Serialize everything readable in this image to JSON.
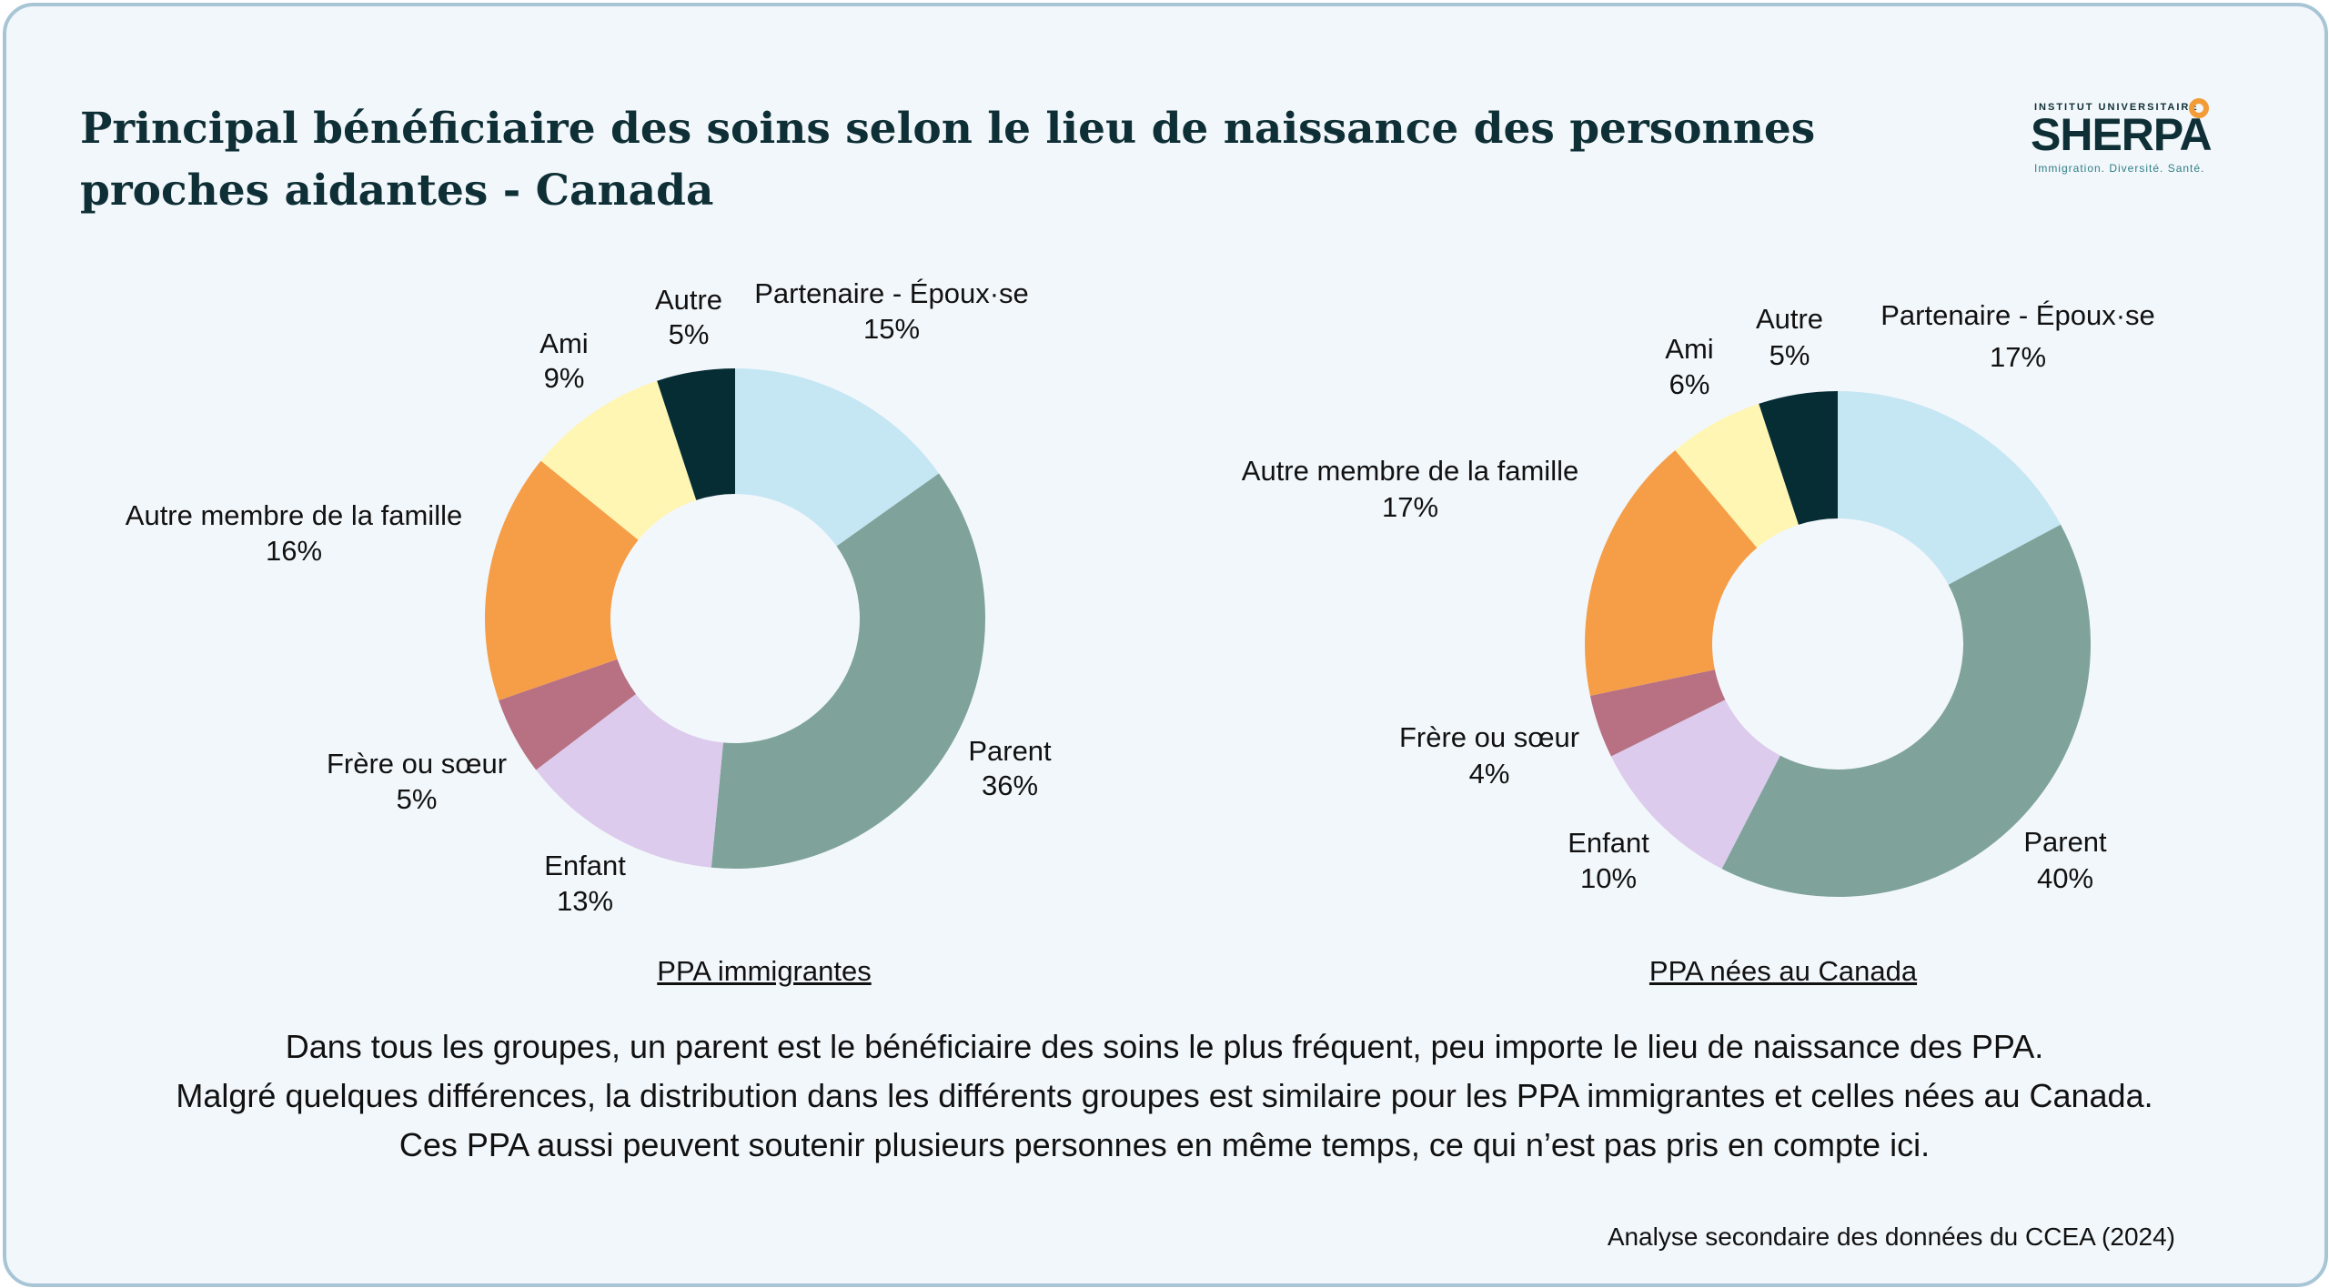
{
  "title": "Principal bénéficiaire des soins selon le lieu de naissance des personnes proches aidantes - Canada",
  "logo": {
    "top": "INSTITUT UNIVERSITAIRE",
    "main": "SHERPA",
    "sub": "Immigration. Diversité. Santé."
  },
  "chart_data": [
    {
      "type": "pie",
      "caption": "PPA immigrantes",
      "slices": [
        {
          "label": "Partenaire - Époux·se",
          "value": 15,
          "text": "15%",
          "color": "#c5e6f3"
        },
        {
          "label": "Parent",
          "value": 36,
          "text": "36%",
          "color": "#7fa39b"
        },
        {
          "label": "Enfant",
          "value": 13,
          "text": "13%",
          "color": "#dccbec"
        },
        {
          "label": "Frère ou sœur",
          "value": 5,
          "text": "5%",
          "color": "#b87083"
        },
        {
          "label": "Autre membre de la famille",
          "value": 16,
          "text": "16%",
          "color": "#f59e47"
        },
        {
          "label": "Ami",
          "value": 9,
          "text": "9%",
          "color": "#fff6b4"
        },
        {
          "label": "Autre",
          "value": 5,
          "text": "5%",
          "color": "#062c34"
        }
      ]
    },
    {
      "type": "pie",
      "caption": "PPA nées au Canada",
      "slices": [
        {
          "label": "Partenaire - Époux·se",
          "value": 17,
          "text": "17%",
          "color": "#c5e6f3"
        },
        {
          "label": "Parent",
          "value": 40,
          "text": "40%",
          "color": "#7fa39b"
        },
        {
          "label": "Enfant",
          "value": 10,
          "text": "10%",
          "color": "#dccbec"
        },
        {
          "label": "Frère ou sœur",
          "value": 4,
          "text": "4%",
          "color": "#b87083"
        },
        {
          "label": "Autre membre de la famille",
          "value": 17,
          "text": "17%",
          "color": "#f59e47"
        },
        {
          "label": "Ami",
          "value": 6,
          "text": "6%",
          "color": "#fff6b4"
        },
        {
          "label": "Autre",
          "value": 5,
          "text": "5%",
          "color": "#062c34"
        }
      ]
    }
  ],
  "takeaway": [
    "Dans tous les groupes, un parent est le bénéficiaire des soins le plus fréquent, peu importe le lieu de naissance des PPA.",
    "Malgré quelques différences, la distribution dans les différents groupes est similaire pour les PPA immigrantes et celles nées au Canada.",
    "Ces PPA aussi peuvent soutenir plusieurs personnes en même temps, ce qui n’est pas pris en compte ici."
  ],
  "source": "Analyse secondaire des données du CCEA (2024)"
}
